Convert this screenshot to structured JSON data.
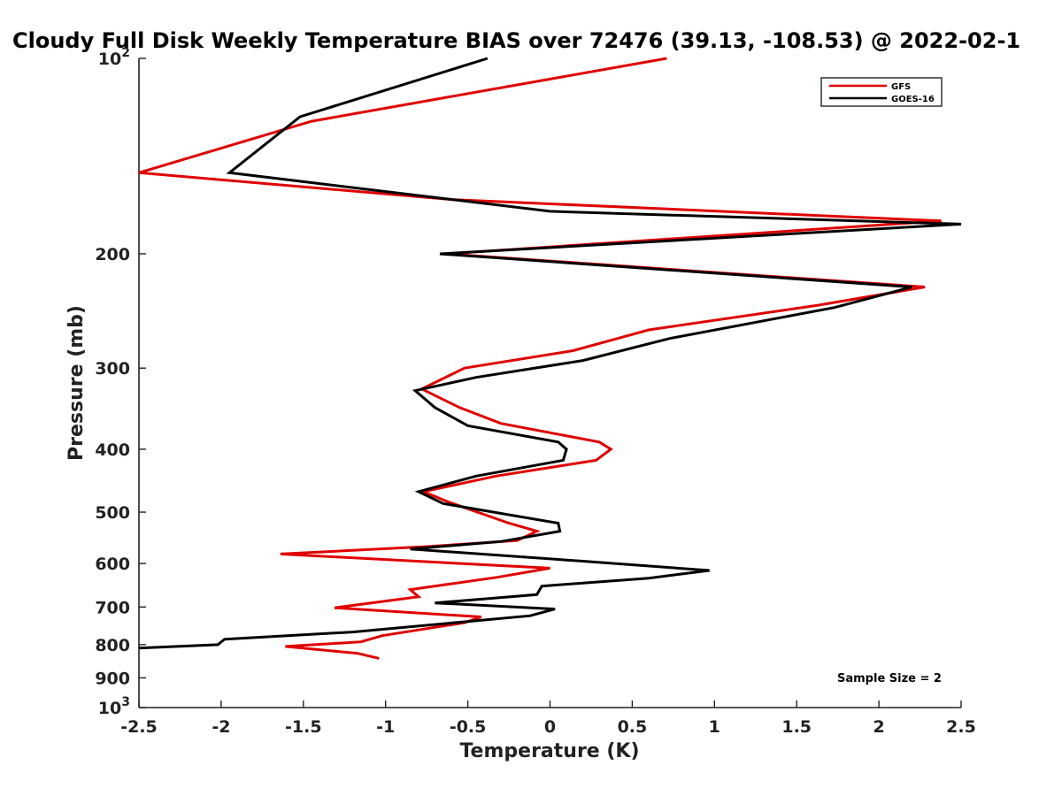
{
  "chart_data": {
    "type": "line",
    "title": "Cloudy Full Disk Weekly Temperature BIAS over 72476 (39.13, -108.53) @ 2022-02-1",
    "xlabel": "Temperature (K)",
    "ylabel": "Pressure (mb)",
    "xlim": [
      -2.5,
      2.5
    ],
    "ylim": [
      100,
      1000
    ],
    "y_scale": "log",
    "y_reversed": true,
    "x_ticks": [
      "-2.5",
      "-2",
      "-1.5",
      "-1",
      "-0.5",
      "0",
      "0.5",
      "1",
      "1.5",
      "2",
      "2.5"
    ],
    "y_ticks": [
      {
        "value": 100,
        "label": "10",
        "sup": "2"
      },
      {
        "value": 200,
        "label": "200"
      },
      {
        "value": 300,
        "label": "300"
      },
      {
        "value": 400,
        "label": "400"
      },
      {
        "value": 500,
        "label": "500"
      },
      {
        "value": 600,
        "label": "600"
      },
      {
        "value": 700,
        "label": "700"
      },
      {
        "value": 800,
        "label": "800"
      },
      {
        "value": 900,
        "label": "900"
      },
      {
        "value": 1000,
        "label": "10",
        "sup": "3"
      }
    ],
    "legend_position": "top-right",
    "annotation": "Sample Size = 2",
    "series": [
      {
        "name": "GFS",
        "color": "#e00000",
        "points": [
          [
            0.71,
            100
          ],
          [
            -1.45,
            125
          ],
          [
            -2.5,
            150
          ],
          [
            -0.6,
            165
          ],
          [
            2.38,
            178
          ],
          [
            -0.63,
            200
          ],
          [
            2.28,
            225
          ],
          [
            1.63,
            240
          ],
          [
            0.6,
            262
          ],
          [
            0.14,
            282
          ],
          [
            -0.52,
            300
          ],
          [
            -0.78,
            323
          ],
          [
            -0.55,
            345
          ],
          [
            -0.3,
            365
          ],
          [
            0.3,
            390
          ],
          [
            0.37,
            400
          ],
          [
            0.28,
            416
          ],
          [
            -0.33,
            440
          ],
          [
            -0.77,
            465
          ],
          [
            -0.62,
            482
          ],
          [
            -0.25,
            520
          ],
          [
            -0.08,
            535
          ],
          [
            -0.2,
            553
          ],
          [
            -0.75,
            565
          ],
          [
            -1.64,
            580
          ],
          [
            0.0,
            610
          ],
          [
            -0.32,
            630
          ],
          [
            -0.85,
            658
          ],
          [
            -0.8,
            675
          ],
          [
            -1.31,
            702
          ],
          [
            -0.42,
            725
          ],
          [
            -0.52,
            740
          ],
          [
            -1.02,
            775
          ],
          [
            -1.15,
            792
          ],
          [
            -1.61,
            805
          ],
          [
            -1.17,
            825
          ],
          [
            -1.04,
            840
          ]
        ]
      },
      {
        "name": "GOES-16",
        "color": "#000000",
        "points": [
          [
            -0.38,
            100
          ],
          [
            -1.52,
            123
          ],
          [
            -1.95,
            150
          ],
          [
            0.0,
            172
          ],
          [
            2.5,
            180
          ],
          [
            -0.67,
            200
          ],
          [
            2.2,
            225
          ],
          [
            1.73,
            242
          ],
          [
            0.73,
            270
          ],
          [
            0.2,
            292
          ],
          [
            -0.45,
            310
          ],
          [
            -0.82,
            325
          ],
          [
            -0.7,
            345
          ],
          [
            -0.5,
            368
          ],
          [
            0.05,
            390
          ],
          [
            0.1,
            400
          ],
          [
            0.08,
            416
          ],
          [
            -0.45,
            440
          ],
          [
            -0.8,
            465
          ],
          [
            -0.65,
            485
          ],
          [
            0.05,
            520
          ],
          [
            0.06,
            535
          ],
          [
            -0.3,
            555
          ],
          [
            -0.85,
            570
          ],
          [
            0.2,
            595
          ],
          [
            0.97,
            615
          ],
          [
            0.6,
            632
          ],
          [
            -0.05,
            650
          ],
          [
            -0.08,
            670
          ],
          [
            -0.7,
            690
          ],
          [
            0.03,
            705
          ],
          [
            -0.12,
            722
          ],
          [
            -1.2,
            765
          ],
          [
            -1.98,
            785
          ],
          [
            -2.02,
            800
          ],
          [
            -2.5,
            810
          ]
        ]
      }
    ]
  }
}
